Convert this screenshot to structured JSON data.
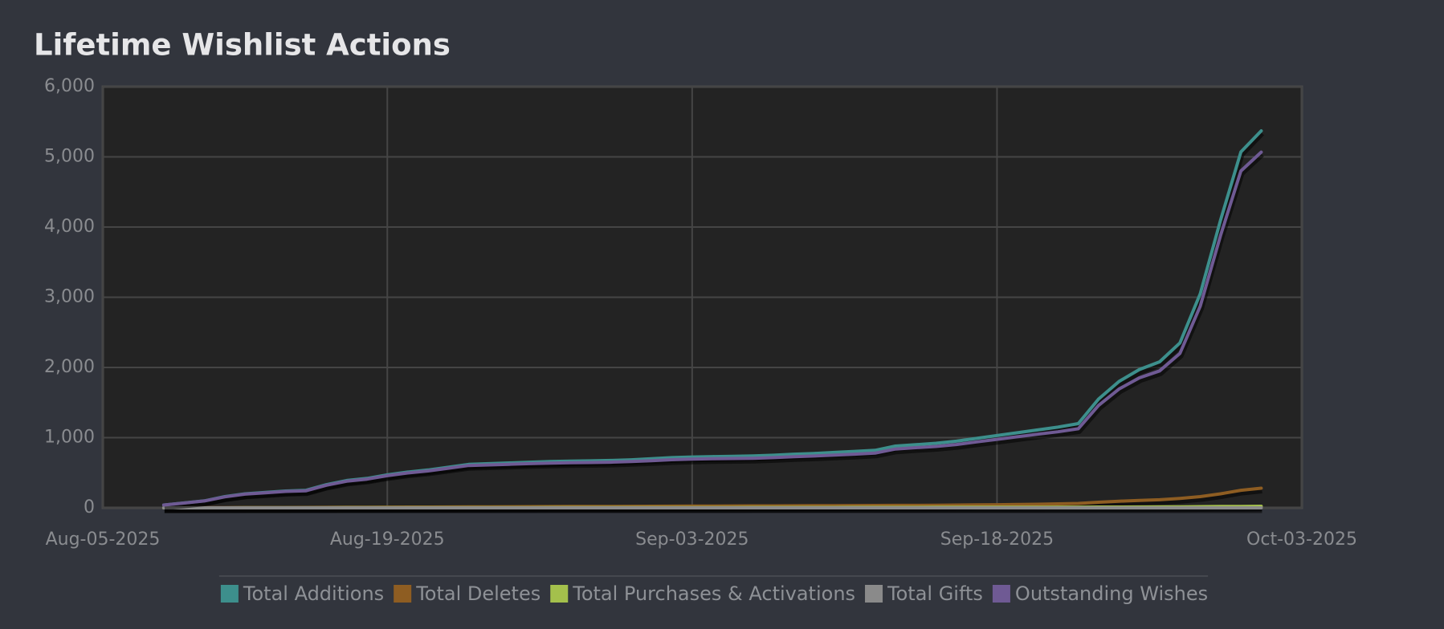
{
  "chart_data": {
    "type": "line",
    "title": "Lifetime Wishlist Actions",
    "x": [
      "2025-08-08",
      "2025-08-09",
      "2025-08-10",
      "2025-08-11",
      "2025-08-12",
      "2025-08-13",
      "2025-08-14",
      "2025-08-15",
      "2025-08-16",
      "2025-08-17",
      "2025-08-18",
      "2025-08-19",
      "2025-08-20",
      "2025-08-21",
      "2025-08-22",
      "2025-08-23",
      "2025-08-24",
      "2025-08-25",
      "2025-08-26",
      "2025-08-27",
      "2025-08-28",
      "2025-08-29",
      "2025-08-30",
      "2025-08-31",
      "2025-09-01",
      "2025-09-02",
      "2025-09-03",
      "2025-09-04",
      "2025-09-05",
      "2025-09-06",
      "2025-09-07",
      "2025-09-08",
      "2025-09-09",
      "2025-09-10",
      "2025-09-11",
      "2025-09-12",
      "2025-09-13",
      "2025-09-14",
      "2025-09-15",
      "2025-09-16",
      "2025-09-17",
      "2025-09-18",
      "2025-09-19",
      "2025-09-20",
      "2025-09-21",
      "2025-09-22",
      "2025-09-23",
      "2025-09-24",
      "2025-09-25",
      "2025-09-26",
      "2025-09-27",
      "2025-09-28",
      "2025-09-29",
      "2025-09-30",
      "2025-10-01"
    ],
    "series": [
      {
        "name": "Total Additions",
        "color": "#3d8f8c",
        "values": [
          40,
          70,
          100,
          160,
          200,
          220,
          240,
          250,
          330,
          390,
          420,
          470,
          510,
          540,
          580,
          620,
          630,
          640,
          650,
          660,
          665,
          670,
          675,
          685,
          700,
          715,
          725,
          730,
          735,
          740,
          750,
          765,
          775,
          790,
          805,
          820,
          880,
          900,
          920,
          950,
          990,
          1030,
          1070,
          1110,
          1150,
          1200,
          1550,
          1800,
          1970,
          2080,
          2350,
          3050,
          4100,
          5070,
          5370
        ]
      },
      {
        "name": "Total Deletes",
        "color": "#8e5d22",
        "values": [
          0,
          1,
          2,
          3,
          4,
          5,
          5,
          6,
          7,
          8,
          9,
          10,
          11,
          12,
          13,
          14,
          15,
          16,
          17,
          18,
          19,
          20,
          21,
          22,
          23,
          24,
          25,
          26,
          27,
          28,
          29,
          30,
          31,
          32,
          33,
          34,
          35,
          36,
          38,
          40,
          42,
          45,
          48,
          52,
          57,
          63,
          80,
          95,
          105,
          115,
          135,
          160,
          200,
          250,
          280
        ]
      },
      {
        "name": "Total Purchases & Activations",
        "color": "#a4c04c",
        "values": [
          0,
          0,
          0,
          0,
          1,
          1,
          1,
          1,
          1,
          2,
          2,
          2,
          2,
          2,
          3,
          3,
          3,
          3,
          3,
          4,
          4,
          4,
          4,
          4,
          5,
          5,
          5,
          5,
          5,
          6,
          6,
          6,
          6,
          6,
          7,
          7,
          7,
          7,
          8,
          8,
          8,
          9,
          9,
          9,
          10,
          10,
          11,
          12,
          13,
          14,
          15,
          17,
          19,
          21,
          23
        ]
      },
      {
        "name": "Total Gifts",
        "color": "#8a8a8a",
        "values": [
          0,
          0,
          0,
          0,
          0,
          0,
          0,
          0,
          0,
          0,
          0,
          0,
          0,
          0,
          0,
          0,
          0,
          0,
          0,
          0,
          0,
          0,
          0,
          0,
          0,
          0,
          0,
          0,
          0,
          0,
          0,
          0,
          0,
          0,
          0,
          0,
          0,
          0,
          0,
          0,
          0,
          0,
          0,
          0,
          0,
          0,
          0,
          0,
          0,
          0,
          0,
          0,
          0,
          0,
          0
        ]
      },
      {
        "name": "Outstanding Wishes",
        "color": "#6f5a94",
        "values": [
          40,
          69,
          98,
          157,
          195,
          214,
          234,
          243,
          322,
          380,
          409,
          458,
          497,
          526,
          564,
          603,
          612,
          621,
          630,
          638,
          642,
          646,
          650,
          659,
          672,
          686,
          695,
          699,
          703,
          706,
          715,
          729,
          738,
          752,
          765,
          779,
          838,
          857,
          874,
          902,
          940,
          976,
          1013,
          1049,
          1083,
          1127,
          1459,
          1693,
          1852,
          1951,
          2200,
          2873,
          3881,
          4799,
          5067
        ]
      }
    ],
    "xlim": [
      "2025-08-05",
      "2025-10-03"
    ],
    "xticks": [
      {
        "value": "2025-08-05",
        "label": "Aug-05-2025"
      },
      {
        "value": "2025-08-19",
        "label": "Aug-19-2025"
      },
      {
        "value": "2025-09-03",
        "label": "Sep-03-2025"
      },
      {
        "value": "2025-09-18",
        "label": "Sep-18-2025"
      },
      {
        "value": "2025-10-03",
        "label": "Oct-03-2025"
      }
    ],
    "ylim": [
      0,
      6000
    ],
    "yticks": [
      0,
      {
        "value": 1000,
        "label": "1,000"
      },
      {
        "value": 2000,
        "label": "2,000"
      },
      {
        "value": 3000,
        "label": "3,000"
      },
      {
        "value": 4000,
        "label": "4,000"
      },
      {
        "value": 5000,
        "label": "5,000"
      },
      {
        "value": 6000,
        "label": "6,000"
      }
    ],
    "grid": true,
    "legend": "bottom"
  }
}
